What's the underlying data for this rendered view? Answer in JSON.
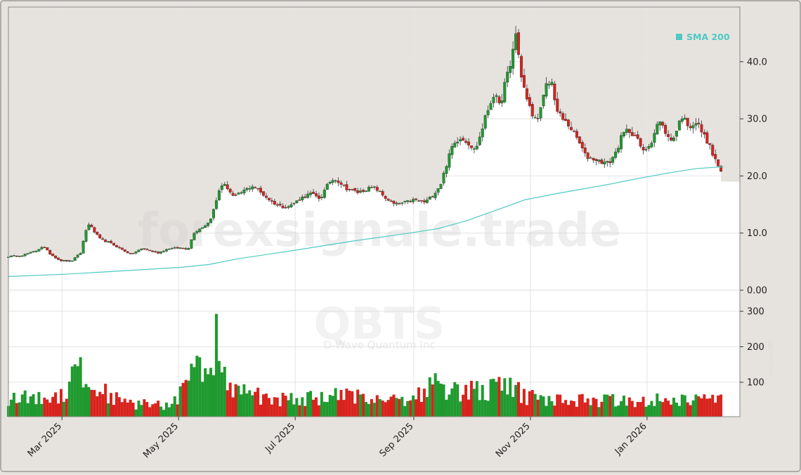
{
  "watermark": {
    "site": "forexsignale.trade",
    "ticker": "QBTS",
    "company": "D-Wave Quantum Inc"
  },
  "colors": {
    "up": "#1f9a2f",
    "down": "#d8231d",
    "sma": "#4ec9c3",
    "panel_bg": "#e6e3de",
    "plot_bg": "#ffffff",
    "grid": "#e4e4e4"
  },
  "chart_data": {
    "type": "candlestick",
    "title": "",
    "legend": [
      {
        "label": "SMA 200",
        "color": "#4ec9c3",
        "position": "top-right"
      }
    ],
    "price_axis": {
      "ticks": [
        "0.00",
        "10.0",
        "20.0",
        "30.0",
        "40.0"
      ],
      "tick_values": [
        0,
        10,
        20,
        30,
        40
      ],
      "range": [
        -1.5,
        49.5
      ]
    },
    "volume_axis": {
      "ticks": [
        "100",
        "200",
        "300"
      ],
      "tick_values": [
        100,
        200,
        300
      ],
      "range": [
        0,
        310
      ],
      "unit_label": "Volume (M)"
    },
    "x_axis": {
      "ticks": [
        "Mar 2025",
        "May 2025",
        "Jul 2025",
        "Sep 2025",
        "Nov 2025",
        "Jan 2026"
      ],
      "tick_days": [
        28,
        89,
        150,
        212,
        273,
        334
      ],
      "day_range": [
        0,
        373
      ]
    },
    "last_price": 19.0,
    "price_path": [
      [
        0,
        5.9
      ],
      [
        7,
        6.1
      ],
      [
        14,
        6.8
      ],
      [
        18,
        7.7
      ],
      [
        22,
        6.3
      ],
      [
        27,
        5.2
      ],
      [
        33,
        5.1
      ],
      [
        38,
        6.6
      ],
      [
        40,
        10.0
      ],
      [
        42,
        11.6
      ],
      [
        45,
        10.2
      ],
      [
        48,
        8.9
      ],
      [
        53,
        8.3
      ],
      [
        60,
        7.0
      ],
      [
        64,
        6.3
      ],
      [
        70,
        7.3
      ],
      [
        78,
        6.5
      ],
      [
        84,
        7.3
      ],
      [
        90,
        7.4
      ],
      [
        94,
        7.2
      ],
      [
        97,
        10.1
      ],
      [
        102,
        11.2
      ],
      [
        105,
        11.9
      ],
      [
        108,
        14.7
      ],
      [
        111,
        18.5
      ],
      [
        114,
        18.2
      ],
      [
        118,
        16.2
      ],
      [
        124,
        17.6
      ],
      [
        128,
        18.3
      ],
      [
        132,
        17.1
      ],
      [
        138,
        15.4
      ],
      [
        143,
        14.6
      ],
      [
        147,
        14.7
      ],
      [
        153,
        16.1
      ],
      [
        158,
        16.9
      ],
      [
        163,
        16.0
      ],
      [
        168,
        19.0
      ],
      [
        171,
        19.5
      ],
      [
        177,
        17.8
      ],
      [
        183,
        17.1
      ],
      [
        188,
        17.8
      ],
      [
        192,
        17.9
      ],
      [
        197,
        16.2
      ],
      [
        202,
        15.0
      ],
      [
        207,
        15.3
      ],
      [
        212,
        15.8
      ],
      [
        218,
        15.4
      ],
      [
        222,
        16.6
      ],
      [
        226,
        18.5
      ],
      [
        229,
        21.9
      ],
      [
        232,
        25.1
      ],
      [
        236,
        26.8
      ],
      [
        240,
        26.0
      ],
      [
        244,
        24.4
      ],
      [
        247,
        27.3
      ],
      [
        250,
        30.9
      ],
      [
        254,
        34.5
      ],
      [
        257,
        32.0
      ],
      [
        260,
        36.8
      ],
      [
        263,
        39.5
      ],
      [
        265,
        45.8
      ],
      [
        268,
        38.0
      ],
      [
        271,
        33.4
      ],
      [
        275,
        29.8
      ],
      [
        278,
        31.0
      ],
      [
        281,
        35.6
      ],
      [
        284,
        36.6
      ],
      [
        287,
        31.3
      ],
      [
        290,
        29.9
      ],
      [
        294,
        28.5
      ],
      [
        298,
        26.2
      ],
      [
        302,
        23.4
      ],
      [
        306,
        23.0
      ],
      [
        310,
        22.5
      ],
      [
        314,
        22.2
      ],
      [
        318,
        24.3
      ],
      [
        321,
        27.2
      ],
      [
        324,
        28.1
      ],
      [
        328,
        27.0
      ],
      [
        332,
        24.2
      ],
      [
        336,
        25.8
      ],
      [
        340,
        29.7
      ],
      [
        343,
        28.2
      ],
      [
        346,
        26.0
      ],
      [
        349,
        27.5
      ],
      [
        352,
        30.6
      ],
      [
        356,
        28.7
      ],
      [
        360,
        29.4
      ],
      [
        363,
        27.5
      ],
      [
        366,
        25.8
      ],
      [
        369,
        23.2
      ],
      [
        372,
        21.3
      ],
      [
        373,
        20.5
      ],
      [
        374,
        19.0
      ]
    ],
    "sma_path": [
      [
        0,
        2.4
      ],
      [
        30,
        2.8
      ],
      [
        60,
        3.4
      ],
      [
        90,
        4.0
      ],
      [
        105,
        4.5
      ],
      [
        120,
        5.5
      ],
      [
        150,
        7.0
      ],
      [
        180,
        8.6
      ],
      [
        210,
        10.0
      ],
      [
        225,
        10.8
      ],
      [
        240,
        12.2
      ],
      [
        255,
        14.0
      ],
      [
        270,
        15.8
      ],
      [
        285,
        16.8
      ],
      [
        300,
        17.7
      ],
      [
        315,
        18.6
      ],
      [
        330,
        19.6
      ],
      [
        345,
        20.5
      ],
      [
        360,
        21.3
      ],
      [
        374,
        21.6
      ]
    ],
    "volume_base": [
      [
        0,
        55
      ],
      [
        20,
        55
      ],
      [
        30,
        70
      ],
      [
        35,
        180
      ],
      [
        40,
        90
      ],
      [
        50,
        75
      ],
      [
        60,
        40
      ],
      [
        85,
        35
      ],
      [
        100,
        150
      ],
      [
        106,
        80
      ],
      [
        110,
        200
      ],
      [
        115,
        70
      ],
      [
        120,
        75
      ],
      [
        140,
        50
      ],
      [
        160,
        55
      ],
      [
        170,
        60
      ],
      [
        200,
        55
      ],
      [
        212,
        55
      ],
      [
        218,
        80
      ],
      [
        224,
        95
      ],
      [
        235,
        70
      ],
      [
        242,
        80
      ],
      [
        250,
        75
      ],
      [
        262,
        90
      ],
      [
        270,
        60
      ],
      [
        280,
        50
      ],
      [
        300,
        50
      ],
      [
        320,
        48
      ],
      [
        340,
        52
      ],
      [
        374,
        50
      ]
    ]
  }
}
